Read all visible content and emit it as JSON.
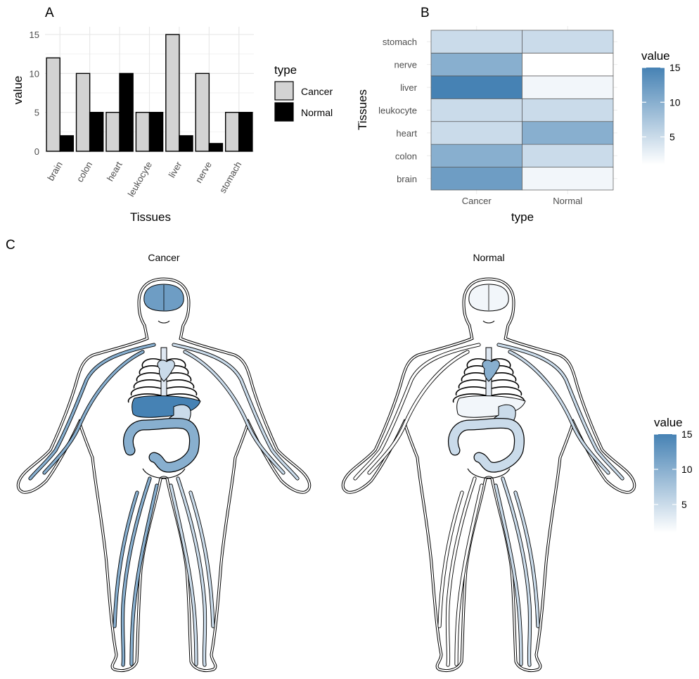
{
  "panels": {
    "a": "A",
    "b": "B",
    "c": "C"
  },
  "chart_data": [
    {
      "type": "bar",
      "categories": [
        "brain",
        "colon",
        "heart",
        "leukocyte",
        "liver",
        "nerve",
        "stomach"
      ],
      "series": [
        {
          "name": "Cancer",
          "values": [
            12,
            10,
            5,
            5,
            15,
            10,
            5
          ],
          "color": "#d3d3d3"
        },
        {
          "name": "Normal",
          "values": [
            2,
            5,
            10,
            5,
            2,
            1,
            5
          ],
          "color": "#000000"
        }
      ],
      "xlabel": "Tissues",
      "ylabel": "value",
      "yticks": [
        0,
        5,
        10,
        15
      ],
      "ylim": [
        0,
        16
      ],
      "legend_title": "type",
      "legend_position": "right",
      "grid": true
    },
    {
      "type": "heatmap",
      "x_categories": [
        "Cancer",
        "Normal"
      ],
      "y_categories": [
        "brain",
        "colon",
        "heart",
        "leukocyte",
        "liver",
        "nerve",
        "stomach"
      ],
      "values": {
        "Cancer": [
          12,
          10,
          5,
          5,
          15,
          10,
          5
        ],
        "Normal": [
          2,
          5,
          10,
          5,
          2,
          1,
          5
        ]
      },
      "xlabel": "type",
      "ylabel": "Tissues",
      "legend_title": "value",
      "legend_ticks": [
        5,
        10,
        15
      ],
      "color_low": "#ffffff",
      "color_high": "#4682b4",
      "range": [
        1,
        15
      ]
    },
    {
      "type": "other",
      "facets": [
        "Cancer",
        "Normal"
      ],
      "organs": [
        "brain",
        "heart",
        "liver",
        "colon",
        "stomach",
        "leukocyte",
        "nerve"
      ],
      "legend_title": "value",
      "legend_ticks": [
        5,
        10,
        15
      ],
      "color_low": "#ffffff",
      "color_high": "#4682b4"
    }
  ]
}
